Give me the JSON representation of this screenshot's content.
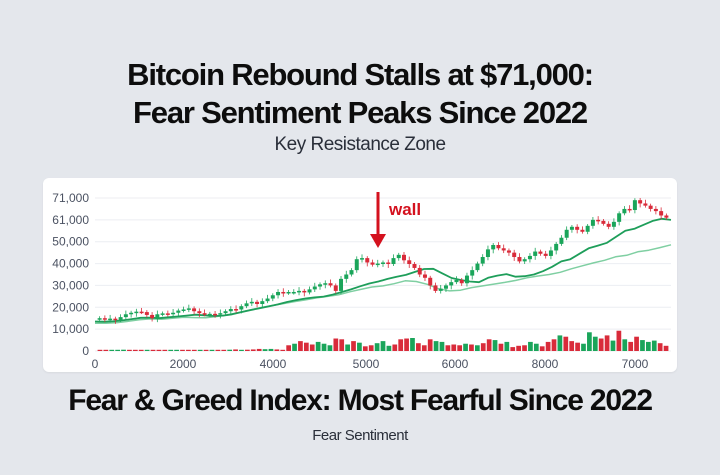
{
  "headline": {
    "line1": "Bitcoin Rebound Stalls at $71,000:",
    "line2": "Fear Sentiment Peaks Since 2022",
    "subtitle": "Key Resistance Zone"
  },
  "footer": {
    "title": "Fear & Greed Index: Most Fearful Since 2022",
    "subtitle": "Fear Sentiment"
  },
  "colors": {
    "up": "#1aa55a",
    "down": "#d92b3a",
    "ma_fast": "#1e9e5a",
    "ma_slow": "#7fcfa2",
    "annotation": "#d4111e",
    "grid": "#eceef2"
  },
  "chart_data": {
    "type": "candlestick",
    "title": "Key Resistance Zone",
    "y_tick_labels": [
      "0",
      "10,000",
      "20,000",
      "30,000",
      "40,000",
      "50,000",
      "61,000",
      "71,000"
    ],
    "x_tick_labels": [
      "0",
      "2000",
      "4000",
      "5000",
      "6000",
      "8000",
      "7000"
    ],
    "grid": true,
    "annotation": {
      "text": "wall",
      "at_close_approx": 43000,
      "arrow": "down"
    },
    "close_path": [
      15000,
      14500,
      14800,
      14200,
      15500,
      16800,
      17500,
      18000,
      17800,
      16500,
      15000,
      16800,
      17200,
      16900,
      17500,
      18500,
      19000,
      19500,
      18200,
      17300,
      16800,
      17000,
      16700,
      17300,
      18200,
      19200,
      19000,
      20500,
      21800,
      22500,
      21500,
      22800,
      24000,
      25500,
      27000,
      26600,
      27000,
      27000,
      27500,
      26800,
      28200,
      29500,
      30500,
      31000,
      30000,
      27500,
      33000,
      35000,
      37000,
      42000,
      42500,
      40500,
      39500,
      40000,
      40500,
      39800,
      42500,
      44000,
      41500,
      39800,
      38000,
      35000,
      33500,
      30000,
      27500,
      28500,
      30000,
      31500,
      32500,
      31000,
      34500,
      37000,
      40000,
      43000,
      46500,
      48500,
      47000,
      46000,
      45000,
      43000,
      41000,
      42000,
      43500,
      45500,
      44500,
      43500,
      46000,
      49000,
      52000,
      56000,
      57500,
      56000,
      55000,
      58000,
      61000,
      60500,
      59000,
      57500,
      60000,
      64000,
      66000,
      65500,
      70000,
      68500,
      67500,
      66000,
      65000,
      63000,
      62000
    ],
    "ma_fast": [
      13500,
      13400,
      13600,
      14000,
      14600,
      15200,
      15300,
      15000,
      15400,
      15800,
      16200,
      16600,
      16300,
      16000,
      16200,
      16800,
      17800,
      18700,
      19600,
      20400,
      21300,
      22400,
      23300,
      24000,
      24500,
      24900,
      25800,
      27000,
      28200,
      29600,
      30900,
      31800,
      33000,
      34000,
      34800,
      36200,
      37500,
      37600,
      35500,
      33400,
      32500,
      31800,
      31500,
      33500,
      34500,
      35200,
      34000,
      34200,
      35000,
      36500,
      38500,
      41000,
      42000,
      44500,
      47000,
      48200,
      49500,
      52500,
      55500,
      56500,
      58500,
      60500,
      61500,
      61000
    ],
    "ma_slow": [
      12700,
      12700,
      13000,
      13600,
      14300,
      14700,
      14500,
      15000,
      15400,
      15300,
      15200,
      15800,
      16600,
      17600,
      18800,
      19900,
      20800,
      21700,
      22600,
      23400,
      24300,
      25000,
      25700,
      27100,
      28200,
      29300,
      29800,
      30800,
      32100,
      31800,
      30500,
      28500,
      27500,
      27800,
      29000,
      29800,
      30600,
      31400,
      32300,
      33500,
      34300,
      35000,
      36000,
      37600,
      39000,
      40300,
      41500,
      43100,
      43800,
      45400,
      46100,
      47300,
      48600
    ],
    "volume_profile": [
      0.02,
      0.02,
      0.03,
      0.03,
      0.05,
      0.04,
      0.02,
      0.02,
      0.03,
      0.02,
      0.04,
      0.02,
      0.01,
      0.02,
      0.02,
      0.03,
      0.02,
      0.03,
      0.04,
      0.03,
      0.02,
      0.02,
      0.05,
      0.06,
      0.04,
      0.05,
      0.06,
      0.08,
      0.07,
      0.08,
      0.06,
      0.03,
      0.22,
      0.28,
      0.38,
      0.32,
      0.25,
      0.35,
      0.28,
      0.22,
      0.48,
      0.45,
      0.25,
      0.38,
      0.32,
      0.18,
      0.22,
      0.3,
      0.38,
      0.2,
      0.25,
      0.45,
      0.48,
      0.5,
      0.3,
      0.22,
      0.45,
      0.38,
      0.35,
      0.22,
      0.25,
      0.22,
      0.28,
      0.25,
      0.22,
      0.3,
      0.45,
      0.42,
      0.28,
      0.35,
      0.15,
      0.2,
      0.22,
      0.35,
      0.28,
      0.18,
      0.35,
      0.45,
      0.6,
      0.55,
      0.38,
      0.32,
      0.28,
      0.72,
      0.55,
      0.48,
      0.6,
      0.4,
      0.78,
      0.45,
      0.35,
      0.55,
      0.42,
      0.35,
      0.4,
      0.3,
      0.2
    ],
    "ylim": [
      0,
      71000
    ],
    "xlim": [
      0,
      7400
    ]
  }
}
